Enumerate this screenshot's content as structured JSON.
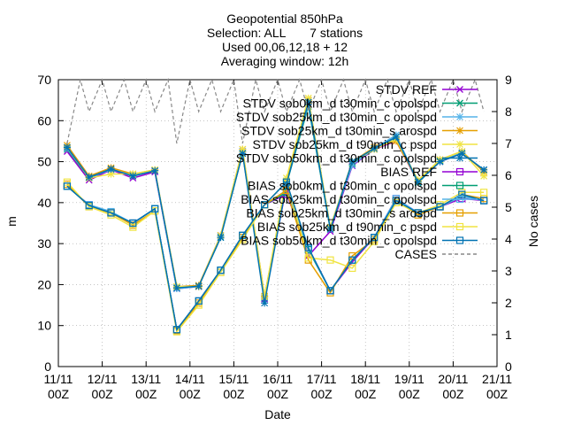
{
  "chart_data": {
    "type": "line",
    "title_lines": [
      "Geopotential 850hPa",
      "Selection: ALL       7 stations",
      "Used 00,06,12,18 + 12",
      "Averaging window: 12h"
    ],
    "xlabel": "Date",
    "ylabel": "m",
    "y2label": "No cases",
    "ylim": [
      0,
      70
    ],
    "y2lim": [
      0,
      9
    ],
    "xlim": [
      0,
      10
    ],
    "grid": true,
    "legend_position": "top-right",
    "x_ticks": [
      {
        "x": 0,
        "l1": "11/11",
        "l2": "00Z"
      },
      {
        "x": 1,
        "l1": "12/11",
        "l2": "00Z"
      },
      {
        "x": 2,
        "l1": "13/11",
        "l2": "00Z"
      },
      {
        "x": 3,
        "l1": "14/11",
        "l2": "00Z"
      },
      {
        "x": 4,
        "l1": "15/11",
        "l2": "00Z"
      },
      {
        "x": 5,
        "l1": "16/11",
        "l2": "00Z"
      },
      {
        "x": 6,
        "l1": "17/11",
        "l2": "00Z"
      },
      {
        "x": 7,
        "l1": "18/11",
        "l2": "00Z"
      },
      {
        "x": 8,
        "l1": "19/11",
        "l2": "00Z"
      },
      {
        "x": 9,
        "l1": "20/11",
        "l2": "00Z"
      },
      {
        "x": 10,
        "l1": "21/11",
        "l2": "00Z"
      }
    ],
    "y_ticks": [
      "0",
      "10",
      "20",
      "30",
      "40",
      "50",
      "60",
      "70"
    ],
    "y2_ticks": [
      "0",
      "1",
      "2",
      "3",
      "4",
      "5",
      "6",
      "7",
      "8",
      "9"
    ],
    "x": [
      0.2,
      0.7,
      1.2,
      1.7,
      2.2,
      2.7,
      3.2,
      3.7,
      4.2,
      4.7,
      5.2,
      5.7,
      6.2,
      6.7,
      7.2,
      7.7,
      8.2,
      8.7,
      9.2,
      9.7
    ],
    "series": [
      {
        "name": "STDV REF",
        "color": "#9400d3",
        "marker": "x",
        "values": [
          52.5,
          45.5,
          48.0,
          46.0,
          47.5,
          19.0,
          19.5,
          32.0,
          52.5,
          16.5,
          44.0,
          27.0,
          33.0,
          49.0,
          53.0,
          55.0,
          45.0,
          50.0,
          52.0,
          48.0
        ]
      },
      {
        "name": "STDV sob0km_d t30min_c opolspd",
        "color": "#009e73",
        "marker": "x",
        "values": [
          53.0,
          46.0,
          48.2,
          46.5,
          47.8,
          19.2,
          19.6,
          31.5,
          52.0,
          17.0,
          44.5,
          63.5,
          33.5,
          49.5,
          53.0,
          56.0,
          44.8,
          50.2,
          52.0,
          48.0
        ]
      },
      {
        "name": "STDV sob25km_d t30min_c opolspd",
        "color": "#56b4e9",
        "marker": "*",
        "values": [
          53.2,
          46.2,
          48.0,
          46.8,
          47.8,
          19.0,
          19.5,
          31.8,
          52.5,
          16.8,
          44.8,
          64.0,
          33.8,
          49.2,
          53.2,
          56.5,
          45.0,
          50.0,
          52.2,
          48.0
        ]
      },
      {
        "name": "STDV sob25km_d t30min_s arospd",
        "color": "#e69f00",
        "marker": "*",
        "values": [
          54.0,
          46.5,
          48.5,
          47.0,
          48.0,
          19.5,
          19.8,
          32.0,
          53.0,
          17.2,
          45.0,
          65.0,
          34.0,
          50.0,
          53.5,
          55.0,
          45.2,
          50.5,
          52.5,
          47.5
        ]
      },
      {
        "name": "STDV sob25km_d t90min_c pspd",
        "color": "#f0e442",
        "marker": "*",
        "values": [
          53.5,
          46.0,
          47.0,
          47.0,
          48.0,
          19.5,
          19.5,
          32.0,
          53.0,
          17.0,
          46.0,
          65.5,
          34.0,
          50.0,
          53.0,
          55.5,
          45.5,
          50.5,
          52.5,
          46.5
        ]
      },
      {
        "name": "STDV sob50km_d t30min_c opolspd",
        "color": "#0072b2",
        "marker": "*",
        "values": [
          53.5,
          46.2,
          48.2,
          46.5,
          47.8,
          19.2,
          19.6,
          31.5,
          52.0,
          15.5,
          44.5,
          64.5,
          33.5,
          50.0,
          53.2,
          56.0,
          45.0,
          50.0,
          52.0,
          48.0
        ]
      },
      {
        "name": "BIAS REF",
        "color": "#9400d3",
        "marker": "s",
        "values": [
          44.0,
          39.5,
          37.5,
          35.0,
          38.5,
          9.0,
          16.0,
          23.5,
          32.0,
          39.5,
          42.0,
          29.0,
          18.5,
          25.5,
          31.5,
          41.0,
          37.5,
          39.0,
          41.0,
          40.5
        ]
      },
      {
        "name": "BIAS sob0km_d t30min_c opolspd",
        "color": "#009e73",
        "marker": "s",
        "values": [
          44.0,
          39.3,
          37.5,
          35.0,
          38.5,
          9.0,
          16.0,
          23.5,
          32.0,
          39.5,
          42.5,
          28.5,
          18.5,
          26.0,
          31.5,
          40.5,
          37.5,
          39.0,
          41.5,
          40.5
        ]
      },
      {
        "name": "BIAS sob25km_d t30min_c opolspd",
        "color": "#56b4e9",
        "marker": "s",
        "values": [
          44.0,
          39.5,
          37.8,
          35.0,
          38.5,
          9.0,
          16.0,
          23.5,
          32.0,
          39.5,
          43.0,
          28.8,
          18.5,
          26.0,
          31.5,
          41.0,
          37.5,
          39.0,
          41.5,
          40.5
        ]
      },
      {
        "name": "BIAS sob25km_d t30min_s arospd",
        "color": "#e69f00",
        "marker": "s",
        "values": [
          44.5,
          39.0,
          37.5,
          34.5,
          38.0,
          8.8,
          15.5,
          23.0,
          31.5,
          39.5,
          43.0,
          26.0,
          18.0,
          27.0,
          31.0,
          40.5,
          37.0,
          39.0,
          42.0,
          41.0
        ]
      },
      {
        "name": "BIAS sob25km_d t90min_c pspd",
        "color": "#f0e442",
        "marker": "s",
        "values": [
          45.0,
          39.0,
          37.0,
          34.0,
          38.0,
          8.5,
          15.0,
          23.0,
          31.0,
          39.5,
          45.0,
          26.5,
          26.0,
          24.0,
          30.5,
          40.0,
          37.5,
          39.5,
          42.5,
          42.5
        ]
      },
      {
        "name": "BIAS sob50km_d t30min_c opolspd",
        "color": "#0072b2",
        "marker": "s",
        "values": [
          44.0,
          39.3,
          37.5,
          35.0,
          38.5,
          9.0,
          16.0,
          23.5,
          32.0,
          39.5,
          45.0,
          29.0,
          18.5,
          26.0,
          31.5,
          40.5,
          37.5,
          39.0,
          42.0,
          40.5
        ]
      },
      {
        "name": "CASES",
        "color": "#888888",
        "dashed": true,
        "axis": "y2",
        "x": [
          0.2,
          0.5,
          0.7,
          1.0,
          1.2,
          1.5,
          1.7,
          2.0,
          2.2,
          2.5,
          2.7,
          3.0,
          3.2,
          3.5,
          3.7,
          4.0,
          4.2,
          4.5,
          4.7,
          5.0,
          5.2,
          5.5,
          5.7,
          6.0,
          6.2,
          6.5,
          6.7,
          7.0,
          7.2,
          7.5,
          7.7,
          8.0,
          8.2,
          8.5,
          8.7,
          9.0,
          9.2,
          9.5,
          9.7
        ],
        "values": [
          7.0,
          9.0,
          8.0,
          9.0,
          8.0,
          9.0,
          8.0,
          9.0,
          8.0,
          9.0,
          7.0,
          9.0,
          8.0,
          9.0,
          8.0,
          9.0,
          7.0,
          9.0,
          8.0,
          9.0,
          8.0,
          9.0,
          8.0,
          9.0,
          8.0,
          9.0,
          8.0,
          9.0,
          8.0,
          9.0,
          8.0,
          9.0,
          8.0,
          9.0,
          8.0,
          9.0,
          8.0,
          9.0,
          8.0
        ]
      }
    ]
  }
}
